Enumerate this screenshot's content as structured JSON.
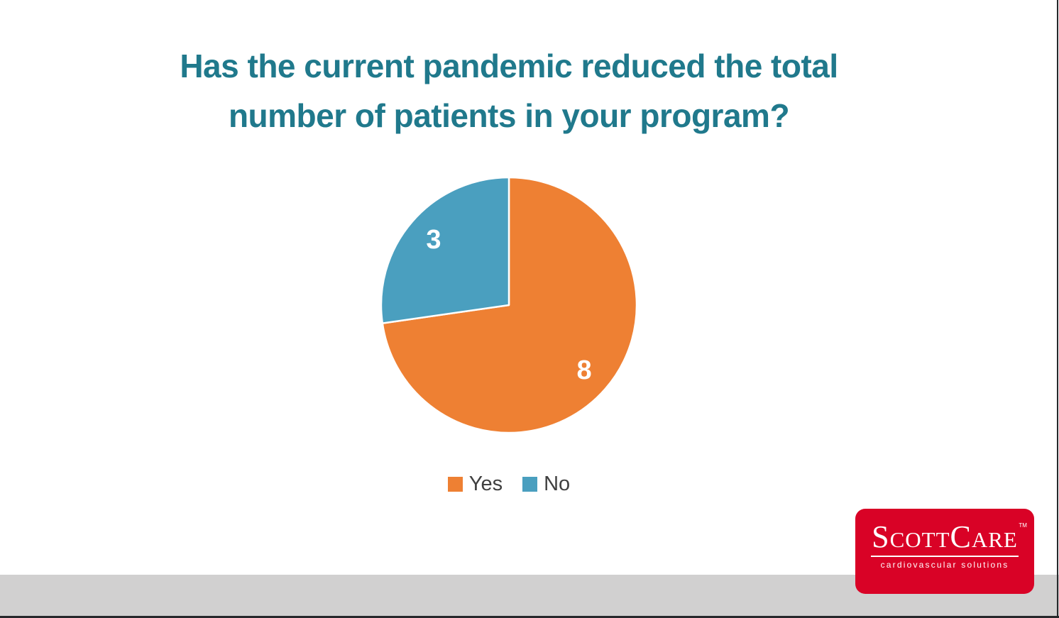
{
  "chart_data": {
    "type": "pie",
    "title": "Has the current pandemic reduced the total\nnumber of patients in your program?",
    "categories": [
      "Yes",
      "No"
    ],
    "values": [
      8,
      3
    ],
    "data_labels": [
      "8",
      "3"
    ],
    "colors": [
      "#EE8033",
      "#4A9FBF"
    ],
    "data_label_color": "#FFFFFF",
    "start_angle_deg": 0,
    "direction": "clockwise",
    "legend_position": "bottom",
    "legend_entries": [
      "Yes",
      "No"
    ]
  },
  "title_color": "#20798C",
  "logo": {
    "brand": "ScottCare",
    "trademark": "TM",
    "tagline": "cardiovascular solutions",
    "background_color": "#D90226",
    "text_color": "#FFFFFF"
  },
  "footer": {
    "bar_color": "#D1D0D0",
    "border_color": "#26282B"
  }
}
